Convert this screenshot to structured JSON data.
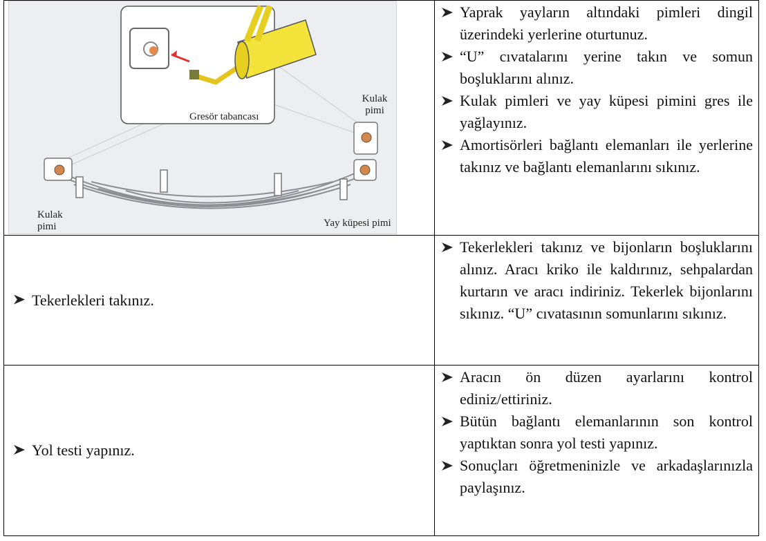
{
  "table": {
    "rows": [
      {
        "image_labels": [
          "Gresör tabancası",
          "Kulak pimi",
          "Kulak pimi",
          "Yay küpesi pimi"
        ],
        "steps": [
          "Yaprak yayların altındaki pimleri dingil üzerindeki yerlerine oturtunuz.",
          "“U” cıvatalarını yerine takın ve somun boşluklarını alınız.",
          "Kulak pimleri ve yay küpesi pimini gres ile yağlayınız.",
          "Amortisörleri bağlantı elemanları ile yerlerine takınız ve bağlantı elemanlarını sıkınız."
        ]
      },
      {
        "action": "Tekerlekleri takınız.",
        "steps": [
          "Tekerlekleri takınız ve bijonların boşluklarını alınız. Aracı kriko ile kaldırınız, sehpalardan kurtarın ve aracı indiriniz. Tekerlek bijonlarını sıkınız. “U” cıvatasının somunlarını sıkınız."
        ]
      },
      {
        "action": "Yol testi yapınız.",
        "steps": [
          "Aracın ön düzen ayarlarını kontrol ediniz/ettiriniz.",
          "Bütün bağlantı elemanlarının son kontrol yaptıktan sonra yol testi yapınız.",
          "Sonuçları öğretmeninizle ve arkadaşlarınızla paylaşınız."
        ]
      }
    ]
  }
}
